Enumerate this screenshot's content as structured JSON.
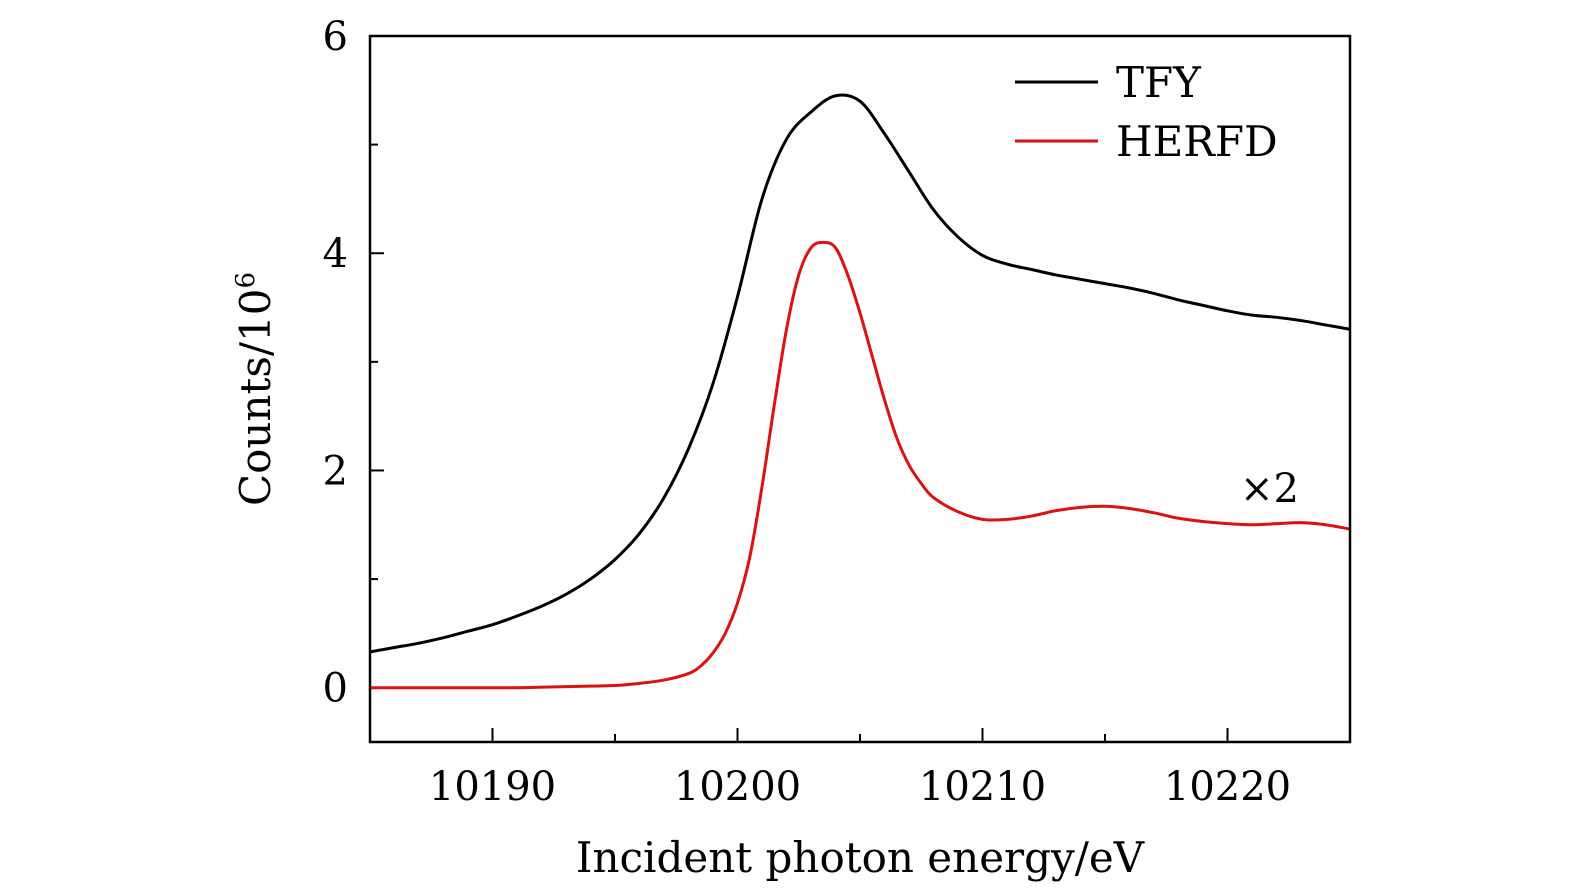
{
  "chart_data": {
    "type": "line",
    "xlabel": "Incident photon energy/eV",
    "ylabel": "Counts/10",
    "ylabel_superscript": "6",
    "xlim": [
      10185,
      10225
    ],
    "ylim": [
      -0.5,
      6
    ],
    "xticks": [
      10190,
      10200,
      10210,
      10220
    ],
    "xticks_minor": [
      10195,
      10205,
      10215
    ],
    "yticks": [
      0,
      2,
      4,
      6
    ],
    "yticks_minor": [
      1,
      3,
      5
    ],
    "legend_position": "top-right",
    "annotations": [
      {
        "text": "×2",
        "x": 10222,
        "y": 1.85
      }
    ],
    "series": [
      {
        "name": "TFY",
        "color": "#000000",
        "x": [
          10185,
          10186,
          10187,
          10188,
          10189,
          10190,
          10191,
          10192,
          10193,
          10194,
          10195,
          10196,
          10197,
          10198,
          10199,
          10200,
          10201,
          10202,
          10203,
          10204,
          10205,
          10206,
          10207,
          10208,
          10209,
          10210,
          10211,
          10212,
          10213,
          10214,
          10215,
          10216,
          10217,
          10218,
          10219,
          10220,
          10221,
          10222,
          10223,
          10224,
          10225
        ],
        "values": [
          0.33,
          0.37,
          0.41,
          0.46,
          0.52,
          0.58,
          0.66,
          0.75,
          0.86,
          1.0,
          1.18,
          1.42,
          1.75,
          2.2,
          2.8,
          3.6,
          4.5,
          5.05,
          5.3,
          5.45,
          5.4,
          5.1,
          4.75,
          4.4,
          4.15,
          3.98,
          3.9,
          3.85,
          3.8,
          3.76,
          3.72,
          3.68,
          3.63,
          3.57,
          3.52,
          3.47,
          3.43,
          3.41,
          3.38,
          3.34,
          3.3
        ]
      },
      {
        "name": "HERFD",
        "color": "#dd1111",
        "x": [
          10185,
          10187,
          10189,
          10191,
          10193,
          10195,
          10196,
          10197,
          10198,
          10198.5,
          10199,
          10199.5,
          10200,
          10200.5,
          10201,
          10201.5,
          10202,
          10202.5,
          10203,
          10203.5,
          10204,
          10204.5,
          10205,
          10205.5,
          10206,
          10206.5,
          10207,
          10207.5,
          10208,
          10209,
          10210,
          10211,
          10212,
          10213,
          10214,
          10215,
          10216,
          10217,
          10218,
          10219,
          10220,
          10221,
          10222,
          10223,
          10224,
          10225
        ],
        "values": [
          0.0,
          0.0,
          0.0,
          0.0,
          0.01,
          0.02,
          0.04,
          0.07,
          0.13,
          0.2,
          0.32,
          0.5,
          0.78,
          1.2,
          1.85,
          2.6,
          3.3,
          3.8,
          4.05,
          4.1,
          4.05,
          3.8,
          3.45,
          3.05,
          2.65,
          2.3,
          2.05,
          1.88,
          1.75,
          1.62,
          1.55,
          1.55,
          1.58,
          1.63,
          1.66,
          1.67,
          1.65,
          1.61,
          1.56,
          1.53,
          1.51,
          1.5,
          1.51,
          1.52,
          1.5,
          1.46
        ]
      }
    ]
  }
}
